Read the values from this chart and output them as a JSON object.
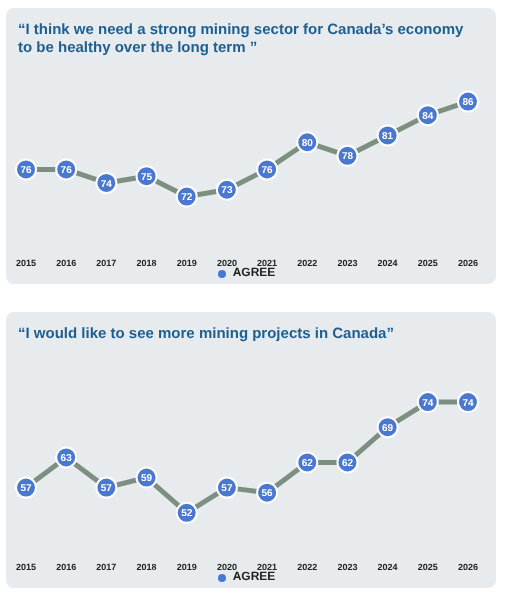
{
  "chart_data": [
    {
      "type": "line",
      "title": "“I think we need a strong mining sector for Canada’s economy to be healthy over the long term ”",
      "categories": [
        "2015",
        "2016",
        "2017",
        "2018",
        "2019",
        "2020",
        "2021",
        "2022",
        "2023",
        "2024",
        "2025",
        "2026"
      ],
      "series": [
        {
          "name": "AGREE",
          "color": "#4a78d0",
          "values": [
            76,
            76,
            74,
            75,
            72,
            73,
            76,
            80,
            78,
            81,
            84,
            86
          ]
        }
      ],
      "data_labels": true,
      "marker": "circle",
      "legend": "bottom",
      "grid": false,
      "tick_labels": "x"
    },
    {
      "type": "line",
      "title": "“I would like to see more mining projects in Canada”",
      "categories": [
        "2015",
        "2016",
        "2017",
        "2018",
        "2019",
        "2020",
        "2021",
        "2022",
        "2023",
        "2024",
        "2025",
        "2026"
      ],
      "series": [
        {
          "name": "AGREE",
          "color": "#4a78d0",
          "values": [
            57,
            63,
            57,
            59,
            52,
            57,
            56,
            62,
            62,
            69,
            74,
            74
          ]
        }
      ],
      "data_labels": true,
      "marker": "circle",
      "legend": "bottom",
      "grid": false,
      "tick_labels": "x"
    }
  ]
}
